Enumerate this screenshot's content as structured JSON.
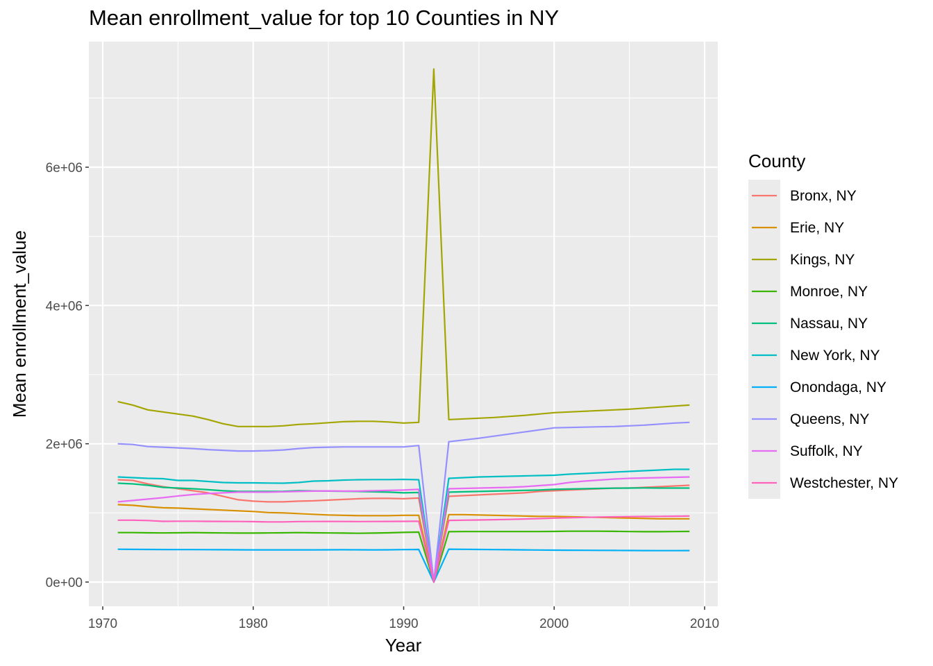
{
  "chart_data": {
    "type": "line",
    "title": "Mean enrollment_value for top 10 Counties in NY",
    "xlabel": "Year",
    "ylabel": "Mean enrollment_value",
    "xlim": [
      1970,
      2010
    ],
    "ylim": [
      0,
      7000000
    ],
    "x_ticks": [
      1970,
      1980,
      1990,
      2000,
      2010
    ],
    "x_tick_labels": [
      "1970",
      "1980",
      "1990",
      "2000",
      "2010"
    ],
    "y_ticks": [
      0,
      2000000,
      4000000,
      6000000
    ],
    "y_tick_labels": [
      "0e+00",
      "2e+06",
      "4e+06",
      "6e+06"
    ],
    "grid": true,
    "legend_title": "County",
    "legend_position": "right",
    "x": [
      1971,
      1972,
      1973,
      1974,
      1975,
      1976,
      1977,
      1978,
      1979,
      1980,
      1981,
      1982,
      1983,
      1984,
      1985,
      1986,
      1987,
      1988,
      1989,
      1990,
      1991,
      1992,
      1993,
      1994,
      1995,
      1996,
      1997,
      1998,
      1999,
      2000,
      2001,
      2002,
      2003,
      2004,
      2005,
      2006,
      2007,
      2008,
      2009
    ],
    "series": [
      {
        "name": "Bronx, NY",
        "color": "#F8766D",
        "values": [
          1480000,
          1470000,
          1420000,
          1380000,
          1350000,
          1320000,
          1290000,
          1240000,
          1190000,
          1170000,
          1160000,
          1160000,
          1170000,
          1175000,
          1185000,
          1195000,
          1205000,
          1210000,
          1210000,
          1205000,
          1215000,
          0,
          1240000,
          1250000,
          1260000,
          1270000,
          1280000,
          1290000,
          1310000,
          1320000,
          1330000,
          1340000,
          1350000,
          1360000,
          1360000,
          1370000,
          1380000,
          1390000,
          1400000
        ]
      },
      {
        "name": "Erie, NY",
        "color": "#D89000",
        "values": [
          1120000,
          1110000,
          1090000,
          1075000,
          1070000,
          1060000,
          1050000,
          1040000,
          1030000,
          1020000,
          1005000,
          1000000,
          990000,
          980000,
          970000,
          965000,
          960000,
          960000,
          960000,
          965000,
          965000,
          0,
          975000,
          975000,
          970000,
          965000,
          960000,
          955000,
          950000,
          950000,
          945000,
          940000,
          935000,
          930000,
          925000,
          920000,
          915000,
          915000,
          915000
        ]
      },
      {
        "name": "Kings, NY",
        "color": "#A3A500",
        "values": [
          2610000,
          2560000,
          2490000,
          2460000,
          2430000,
          2400000,
          2350000,
          2290000,
          2250000,
          2250000,
          2250000,
          2260000,
          2280000,
          2290000,
          2305000,
          2320000,
          2325000,
          2325000,
          2315000,
          2300000,
          2310000,
          7420000,
          2350000,
          2360000,
          2370000,
          2380000,
          2395000,
          2410000,
          2430000,
          2450000,
          2460000,
          2470000,
          2480000,
          2490000,
          2500000,
          2515000,
          2530000,
          2545000,
          2560000
        ]
      },
      {
        "name": "Monroe, NY",
        "color": "#39B600",
        "values": [
          715000,
          715000,
          712000,
          710000,
          712000,
          715000,
          712000,
          710000,
          708000,
          708000,
          710000,
          712000,
          715000,
          712000,
          710000,
          708000,
          705000,
          708000,
          712000,
          718000,
          722000,
          0,
          728000,
          730000,
          730000,
          730000,
          730000,
          730000,
          730000,
          732000,
          735000,
          735000,
          735000,
          733000,
          730000,
          728000,
          728000,
          730000,
          732000
        ]
      },
      {
        "name": "Nassau, NY",
        "color": "#00BF7D",
        "values": [
          1430000,
          1420000,
          1400000,
          1370000,
          1360000,
          1350000,
          1335000,
          1320000,
          1310000,
          1310000,
          1310000,
          1312000,
          1320000,
          1318000,
          1315000,
          1312000,
          1310000,
          1305000,
          1300000,
          1290000,
          1295000,
          0,
          1300000,
          1305000,
          1310000,
          1315000,
          1320000,
          1325000,
          1330000,
          1340000,
          1345000,
          1350000,
          1355000,
          1358000,
          1360000,
          1362000,
          1360000,
          1360000,
          1360000
        ]
      },
      {
        "name": "New York, NY",
        "color": "#00BFC4",
        "values": [
          1520000,
          1510000,
          1500000,
          1495000,
          1470000,
          1470000,
          1455000,
          1440000,
          1435000,
          1435000,
          1432000,
          1430000,
          1440000,
          1460000,
          1465000,
          1475000,
          1480000,
          1482000,
          1482000,
          1485000,
          1480000,
          0,
          1500000,
          1510000,
          1520000,
          1525000,
          1530000,
          1535000,
          1540000,
          1545000,
          1560000,
          1570000,
          1580000,
          1590000,
          1600000,
          1610000,
          1620000,
          1630000,
          1630000
        ]
      },
      {
        "name": "Onondaga, NY",
        "color": "#00B0F6",
        "values": [
          475000,
          473000,
          472000,
          471000,
          470000,
          470000,
          469000,
          468000,
          467000,
          466000,
          466000,
          466000,
          466000,
          466000,
          467000,
          468000,
          467000,
          466000,
          467000,
          470000,
          472000,
          0,
          476000,
          474000,
          472000,
          470000,
          468000,
          466000,
          464000,
          462000,
          461000,
          460000,
          459000,
          458000,
          457000,
          456000,
          455000,
          455000,
          456000
        ]
      },
      {
        "name": "Queens, NY",
        "color": "#9590FF",
        "values": [
          2000000,
          1990000,
          1960000,
          1950000,
          1940000,
          1930000,
          1915000,
          1905000,
          1895000,
          1895000,
          1900000,
          1910000,
          1930000,
          1945000,
          1950000,
          1955000,
          1955000,
          1955000,
          1955000,
          1955000,
          1975000,
          0,
          2030000,
          2055000,
          2080000,
          2110000,
          2140000,
          2170000,
          2200000,
          2230000,
          2235000,
          2240000,
          2245000,
          2250000,
          2260000,
          2270000,
          2285000,
          2300000,
          2310000
        ]
      },
      {
        "name": "Suffolk, NY",
        "color": "#E76BF3",
        "values": [
          1160000,
          1180000,
          1200000,
          1220000,
          1245000,
          1265000,
          1280000,
          1290000,
          1300000,
          1300000,
          1300000,
          1305000,
          1310000,
          1315000,
          1318000,
          1315000,
          1315000,
          1320000,
          1325000,
          1330000,
          1340000,
          0,
          1350000,
          1355000,
          1360000,
          1365000,
          1370000,
          1380000,
          1395000,
          1410000,
          1440000,
          1460000,
          1475000,
          1490000,
          1500000,
          1505000,
          1510000,
          1515000,
          1520000
        ]
      },
      {
        "name": "Westchester, NY",
        "color": "#FF62BC",
        "values": [
          895000,
          895000,
          890000,
          878000,
          880000,
          880000,
          878000,
          877000,
          876000,
          874000,
          870000,
          870000,
          875000,
          876000,
          877000,
          876000,
          875000,
          876000,
          877000,
          878000,
          880000,
          0,
          892000,
          895000,
          898000,
          902000,
          906000,
          912000,
          918000,
          925000,
          930000,
          935000,
          940000,
          943000,
          946000,
          948000,
          950000,
          952000,
          955000
        ]
      }
    ]
  }
}
